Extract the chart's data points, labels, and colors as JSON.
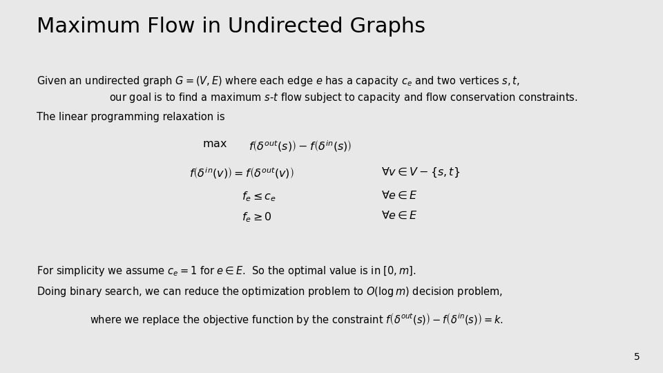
{
  "title": "Maximum Flow in Undirected Graphs",
  "background_color": "#e8e8e8",
  "title_color": "#000000",
  "text_color": "#000000",
  "slide_number": "5",
  "title_fontsize": 22,
  "body_fontsize": 10.5,
  "math_fontsize": 11.5
}
